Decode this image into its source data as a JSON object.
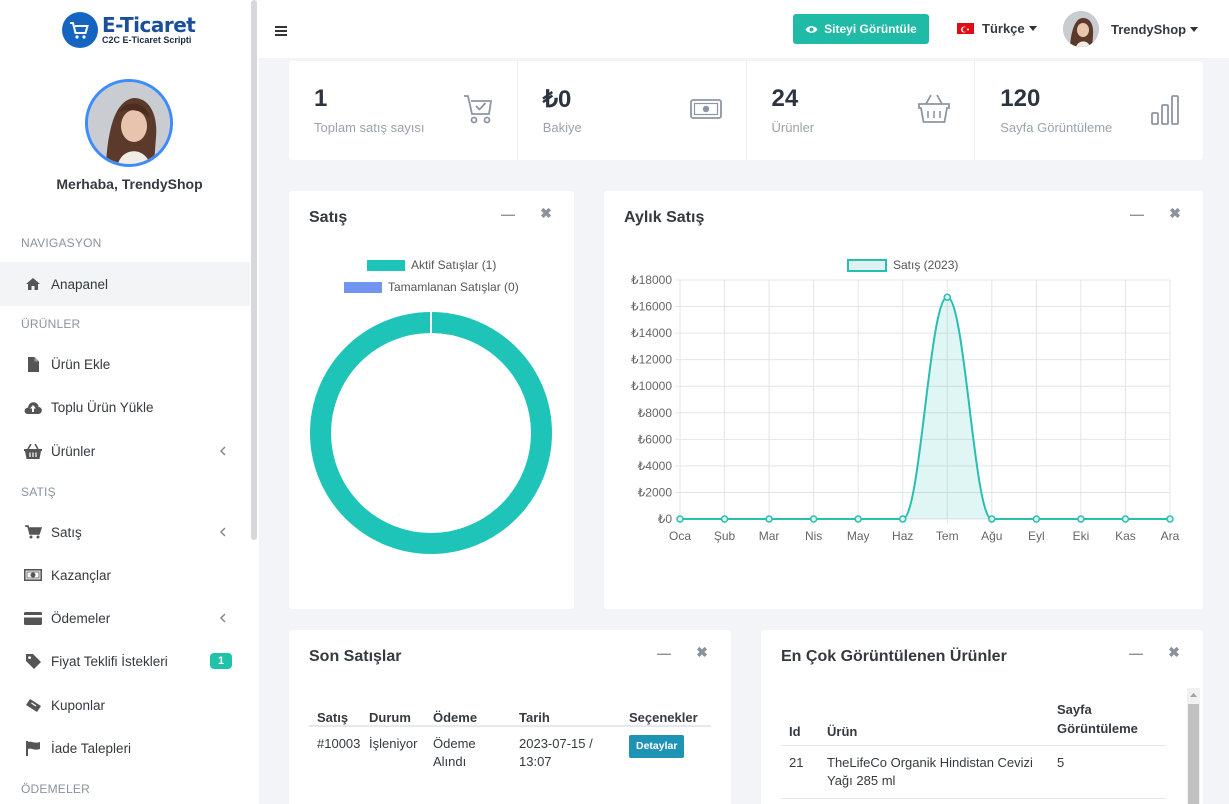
{
  "brand": {
    "title": "E-Ticaret",
    "subtitle": "C2C E-Ticaret Scripti"
  },
  "sidebar": {
    "greeting": "Merhaba, TrendyShop",
    "sections": {
      "navigation": "NAVIGASYON",
      "products": "ÜRÜNLER",
      "sales": "SATIŞ",
      "payments": "ÖDEMELER"
    },
    "items": {
      "dashboard": "Anapanel",
      "add_product": "Ürün Ekle",
      "bulk_upload": "Toplu Ürün Yükle",
      "products": "Ürünler",
      "sales": "Satış",
      "earnings": "Kazançlar",
      "payments": "Ödemeler",
      "quote_requests": "Fiyat Teklifi İstekleri",
      "quote_badge": "1",
      "coupons": "Kuponlar",
      "returns": "İade Talepleri"
    }
  },
  "topbar": {
    "view_site": "Siteyi Görüntüle",
    "language": "Türkçe",
    "username": "TrendyShop"
  },
  "stats": [
    {
      "value": "1",
      "label": "Toplam satış sayısı",
      "icon": "cart-check-icon"
    },
    {
      "value": "₺0",
      "label": "Bakiye",
      "icon": "money-icon"
    },
    {
      "value": "24",
      "label": "Ürünler",
      "icon": "basket-icon"
    },
    {
      "value": "120",
      "label": "Sayfa Görüntüleme",
      "icon": "bar-chart-icon"
    }
  ],
  "sales_card": {
    "title": "Satış",
    "legend": [
      "Aktif Satışlar (1)",
      "Tamamlanan Satışlar (0)"
    ]
  },
  "monthly_card": {
    "title": "Aylık Satış",
    "legend": "Satış (2023)"
  },
  "chart_data": [
    {
      "type": "pie",
      "title": "Satış",
      "categories": [
        "Aktif Satışlar (1)",
        "Tamamlanan Satışlar (0)"
      ],
      "values": [
        1,
        0
      ],
      "colors": [
        "#1fc4b8",
        "#6f95f0"
      ],
      "legend": "top"
    },
    {
      "type": "area",
      "title": "Aylık Satış",
      "categories": [
        "Oca",
        "Şub",
        "Mar",
        "Nis",
        "May",
        "Haz",
        "Tem",
        "Ağu",
        "Eyl",
        "Eki",
        "Kas",
        "Ara"
      ],
      "series": [
        {
          "name": "Satış (2023)",
          "values": [
            0,
            0,
            0,
            0,
            0,
            0,
            16700,
            0,
            0,
            0,
            0,
            0
          ]
        }
      ],
      "yticks": [
        "₺0",
        "₺2000",
        "₺4000",
        "₺6000",
        "₺8000",
        "₺10000",
        "₺12000",
        "₺14000",
        "₺16000",
        "₺18000"
      ],
      "ylim": [
        0,
        18000
      ],
      "grid": true,
      "legend": "top",
      "color": "#26bfb0"
    }
  ],
  "recent_sales": {
    "title": "Son Satışlar",
    "headers": [
      "Satış",
      "Durum",
      "Ödeme",
      "Tarih",
      "Seçenekler"
    ],
    "rows": [
      {
        "sale": "#10003",
        "status": "İşleniyor",
        "payment": "Ödeme Alındı",
        "date": "2023-07-15 / 13:07",
        "action": "Detaylar"
      }
    ]
  },
  "top_products": {
    "title": "En Çok Görüntülenen Ürünler",
    "headers": [
      "Id",
      "Ürün",
      "Sayfa Görüntüleme"
    ],
    "rows": [
      {
        "id": "21",
        "product": "TheLifeCo Organik Hindistan Cevizi Yağı 285 ml",
        "views": "5"
      }
    ]
  },
  "colors": {
    "accent": "#1fbba6",
    "donut": "#1fc4b8",
    "completed": "#6f95f0",
    "detail_button": "#1f93b3"
  }
}
